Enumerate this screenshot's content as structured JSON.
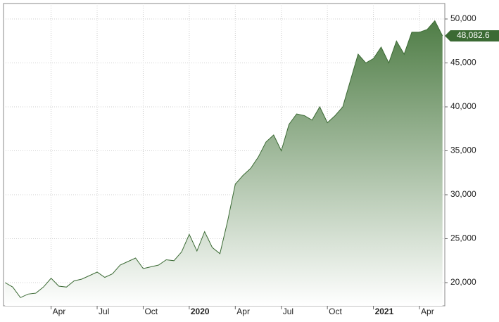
{
  "chart_data": {
    "type": "area",
    "series": [
      {
        "color": "#3b6a34",
        "values": [
          20000,
          19500,
          18300,
          18700,
          18800,
          19500,
          20500,
          19600,
          19500,
          20200,
          20400,
          20800,
          21200,
          20600,
          21000,
          22000,
          22400,
          22800,
          21600,
          21800,
          22000,
          22600,
          22500,
          23500,
          25500,
          23600,
          25800,
          24000,
          23300,
          27000,
          31200,
          32200,
          33000,
          34300,
          36000,
          36800,
          35000,
          38000,
          39200,
          39000,
          38500,
          40000,
          38200,
          39000,
          40000,
          43000,
          46000,
          45000,
          45500,
          46800,
          45000,
          47500,
          46000,
          48500,
          48500,
          48800,
          49800,
          48082.6
        ],
        "value_labels": [
          null,
          null,
          null,
          null,
          null,
          null,
          null,
          null,
          null,
          null,
          null,
          null,
          null,
          null,
          null,
          null,
          null,
          null,
          null,
          null,
          null,
          null,
          null,
          null,
          null,
          null,
          null,
          null,
          null,
          null,
          null,
          null,
          null,
          null,
          null,
          null,
          null,
          null,
          null,
          null,
          null,
          null,
          null,
          null,
          null,
          null,
          null,
          null,
          null,
          null,
          null,
          null,
          null,
          null,
          null,
          null,
          null,
          "48,082.6"
        ]
      }
    ],
    "xlim": [
      -0.2,
      57.3
    ],
    "xticks": [
      {
        "value": 6,
        "label": "Apr"
      },
      {
        "value": 12,
        "label": "Jul"
      },
      {
        "value": 18,
        "label": "Oct"
      },
      {
        "value": 24,
        "label": "2020",
        "bold": true
      },
      {
        "value": 30,
        "label": "Apr"
      },
      {
        "value": 36,
        "label": "Jul"
      },
      {
        "value": 42,
        "label": "Oct"
      },
      {
        "value": 48,
        "label": "2021",
        "bold": true
      },
      {
        "value": 54,
        "label": "Apr"
      }
    ],
    "ylim": [
      17360,
      51760
    ],
    "yticks": [
      {
        "value": 20000,
        "label": "20,000"
      },
      {
        "value": 25000,
        "label": "25,000"
      },
      {
        "value": 30000,
        "label": "30,000"
      },
      {
        "value": 35000,
        "label": "35,000"
      },
      {
        "value": 40000,
        "label": "40,000"
      },
      {
        "value": 45000,
        "label": "45,000"
      },
      {
        "value": 50000,
        "label": "50,000"
      }
    ],
    "grid": true
  }
}
